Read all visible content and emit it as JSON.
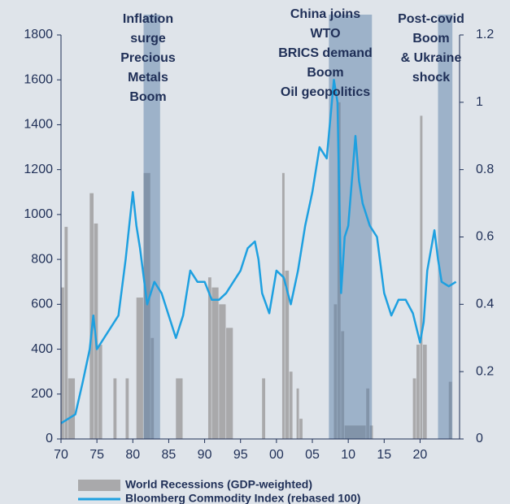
{
  "chart_data": {
    "type": "combo",
    "xlim": [
      1970,
      2025.5
    ],
    "xticks": [
      {
        "value": 1970,
        "label": "70"
      },
      {
        "value": 1975,
        "label": "75"
      },
      {
        "value": 1980,
        "label": "80"
      },
      {
        "value": 1985,
        "label": "85"
      },
      {
        "value": 1990,
        "label": "90"
      },
      {
        "value": 1995,
        "label": "95"
      },
      {
        "value": 2000,
        "label": "00"
      },
      {
        "value": 2005,
        "label": "05"
      },
      {
        "value": 2010,
        "label": "10"
      },
      {
        "value": 2015,
        "label": "15"
      },
      {
        "value": 2020,
        "label": "20"
      }
    ],
    "ylim": [
      0,
      1800
    ],
    "yticks": [
      0,
      200,
      400,
      600,
      800,
      1000,
      1200,
      1400,
      1600,
      1800
    ],
    "y2lim": [
      0,
      1.2
    ],
    "y2ticks": [
      0,
      0.2,
      0.4,
      0.6,
      0.8,
      1,
      1.2
    ],
    "shaded_periods": [
      {
        "start": 1981.5,
        "end": 1983.8,
        "color": "#5b7fa8",
        "label": [
          "Inflation",
          "surge",
          "Precious",
          "Metals",
          "Boom"
        ]
      },
      {
        "start": 2007.3,
        "end": 2013.3,
        "color": "#5b7fa8",
        "label": [
          "China joins",
          "WTO",
          "BRICS demand",
          "Boom",
          "Oil geopolitics"
        ]
      },
      {
        "start": 2022.5,
        "end": 2024.5,
        "color": "#5b7fa8",
        "label": [
          "Post-covid",
          "Boom",
          "& Ukraine",
          "shock"
        ]
      }
    ],
    "series": [
      {
        "name": "World Recessions (GDP-weighted)",
        "type": "bar",
        "axis": "y2",
        "color": "#a9a9ab",
        "x_start": [
          1970,
          1970.5,
          1971,
          1974,
          1974.6,
          1975.2,
          1977.3,
          1979,
          1980.5,
          1981.5,
          1982.5,
          1986,
          1990.5,
          1991,
          1992,
          1993,
          1998,
          2000.8,
          2001.2,
          2001.8,
          2002.8,
          2003.2,
          2008,
          2008.5,
          2009,
          2009.5,
          2012.5,
          2013,
          2019,
          2019.5,
          2020,
          2020.4,
          2024
        ],
        "x_end": [
          1970.5,
          1971,
          1972,
          1974.6,
          1975.2,
          1975.8,
          1977.8,
          1979.5,
          1981.5,
          1982.5,
          1983,
          1987,
          1991,
          1992,
          1993,
          1994,
          1998.5,
          2001.2,
          2001.8,
          2002.3,
          2003.2,
          2003.7,
          2008.5,
          2009,
          2009.5,
          2012.5,
          2013,
          2013.5,
          2019.5,
          2020,
          2020.4,
          2021,
          2024.5
        ],
        "values": [
          0.45,
          0.63,
          0.18,
          0.73,
          0.64,
          0.28,
          0.18,
          0.18,
          0.42,
          0.79,
          0.3,
          0.18,
          0.48,
          0.45,
          0.4,
          0.33,
          0.18,
          0.79,
          0.5,
          0.2,
          0.15,
          0.06,
          0.4,
          1.0,
          0.32,
          0.04,
          0.15,
          0.04,
          0.18,
          0.28,
          0.96,
          0.28,
          0.17
        ]
      },
      {
        "name": "Bloomberg Commodity Index (rebased 100)",
        "type": "line",
        "color": "#1ea0e0",
        "x": [
          1970,
          1971,
          1972,
          1973,
          1974,
          1974.5,
          1975,
          1976,
          1977,
          1978,
          1979,
          1980,
          1980.5,
          1981,
          1982,
          1983,
          1984,
          1985,
          1986,
          1987,
          1988,
          1989,
          1990,
          1991,
          1992,
          1993,
          1994,
          1995,
          1996,
          1997,
          1997.5,
          1998,
          1999,
          2000,
          2001,
          2002,
          2003,
          2004,
          2005,
          2006,
          2007,
          2008,
          2008.5,
          2009,
          2009.5,
          2010,
          2011,
          2011.5,
          2012,
          2013,
          2014,
          2015,
          2016,
          2017,
          2018,
          2019,
          2020,
          2020.5,
          2021,
          2022,
          2022.5,
          2023,
          2024,
          2025
        ],
        "values": [
          70,
          90,
          110,
          250,
          400,
          550,
          400,
          450,
          500,
          550,
          800,
          1100,
          950,
          850,
          600,
          700,
          650,
          550,
          450,
          550,
          750,
          700,
          700,
          620,
          620,
          650,
          700,
          750,
          850,
          880,
          800,
          650,
          560,
          750,
          720,
          600,
          750,
          950,
          1100,
          1300,
          1250,
          1600,
          1500,
          650,
          900,
          950,
          1350,
          1150,
          1050,
          950,
          900,
          650,
          550,
          620,
          620,
          560,
          430,
          520,
          750,
          930,
          800,
          700,
          680,
          700
        ]
      }
    ]
  }
}
